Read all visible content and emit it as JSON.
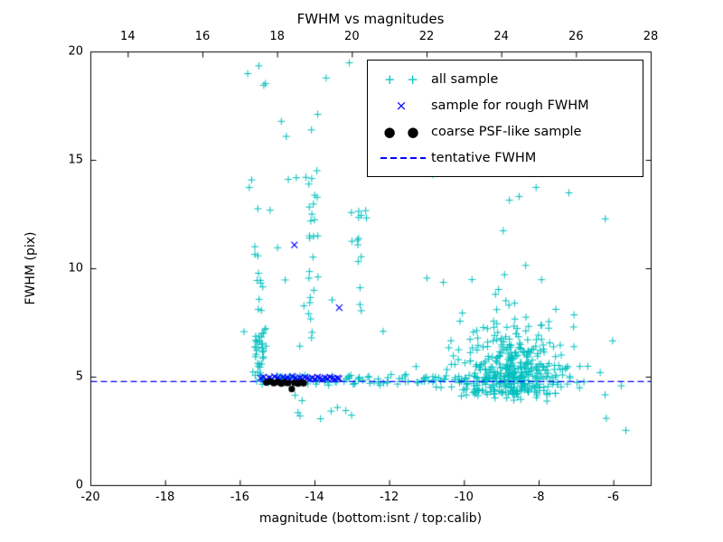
{
  "chart_data": {
    "type": "scatter",
    "title": "FWHM vs magnitudes",
    "xlabel": "magnitude (bottom:isnt / top:calib)",
    "ylabel": "FWHM (pix)",
    "xlim": [
      -20,
      -5
    ],
    "ylim": [
      0,
      20
    ],
    "top_axis_offset": 33,
    "x_ticks_bottom": [
      -20,
      -18,
      -16,
      -14,
      -12,
      -10,
      -8,
      -6
    ],
    "x_ticks_top": [
      14,
      16,
      18,
      20,
      22,
      24,
      26,
      28
    ],
    "y_ticks": [
      0,
      5,
      10,
      15,
      20
    ],
    "grid": false,
    "legend": {
      "position": "upper right",
      "entries": [
        {
          "label": "all sample",
          "type": "plus",
          "glyph": "+ +",
          "color": "#00bfbf"
        },
        {
          "label": "sample for rough FWHM",
          "type": "x",
          "glyph": "×",
          "color": "#0000ff"
        },
        {
          "label": "coarse PSF-like sample",
          "type": "dots",
          "glyph": "● ●",
          "color": "#000000"
        },
        {
          "label": "tentative FWHM",
          "type": "dash",
          "glyph": "",
          "color": "#0000ff"
        }
      ]
    },
    "lines": [
      {
        "name": "tentative FWHM",
        "y": 4.8,
        "style": "dashed",
        "color": "#0000ff"
      }
    ],
    "series": [
      {
        "name": "all sample",
        "marker": "plus",
        "color": "#00bfbf",
        "points": [
          [
            -15.8,
            19.0
          ],
          [
            -13.7,
            18.8
          ],
          [
            -14.9,
            16.8
          ],
          [
            -12.35,
            16.4
          ],
          [
            -10.6,
            15.9
          ],
          [
            -15.9,
            7.1
          ],
          [
            -15.2,
            12.7
          ],
          [
            -14.5,
            14.2
          ],
          [
            -6.2,
            3.1
          ],
          [
            -5.8,
            4.6
          ],
          [
            -13.4,
            3.6
          ],
          [
            -7.2,
            13.5
          ]
        ],
        "clusters": [
          {
            "count": 420,
            "x": {
              "dist": "normal",
              "mu": -8.65,
              "sigma": 0.75,
              "lo": -11.8,
              "hi": -5.3
            },
            "y": {
              "dist": "lognormal",
              "base": 3.6,
              "mu": 0.45,
              "sigma": 0.62,
              "lo": 2.6,
              "hi": 14.5
            }
          },
          {
            "count": 110,
            "x": {
              "dist": "uniform",
              "min": -15.55,
              "max": -9.3
            },
            "y": {
              "dist": "normal",
              "mu": 4.85,
              "sigma": 0.15,
              "lo": 4.4,
              "hi": 5.4
            }
          },
          {
            "count": 50,
            "x": {
              "dist": "normal",
              "mu": -15.5,
              "sigma": 0.09,
              "lo": -15.8,
              "hi": -15.2
            },
            "y": {
              "dist": "lognormal",
              "base": 4.3,
              "mu": 0.9,
              "sigma": 0.85,
              "lo": 4.6,
              "hi": 19.8
            }
          },
          {
            "count": 26,
            "x": {
              "dist": "normal",
              "mu": -14.1,
              "sigma": 0.1,
              "lo": -14.4,
              "hi": -13.85
            },
            "y": {
              "dist": "uniform",
              "min": 6.8,
              "max": 14.6
            }
          },
          {
            "count": 14,
            "x": {
              "dist": "normal",
              "mu": -12.85,
              "sigma": 0.12,
              "lo": -13.2,
              "hi": -12.5
            },
            "y": {
              "dist": "uniform",
              "min": 8.0,
              "max": 13.4
            }
          },
          {
            "count": 45,
            "x": {
              "dist": "uniform",
              "min": -15.9,
              "max": -5.5
            },
            "y": {
              "dist": "uniform",
              "min": 2.3,
              "max": 19.6
            }
          },
          {
            "count": 8,
            "x": {
              "dist": "uniform",
              "min": -14.9,
              "max": -12.7
            },
            "y": {
              "dist": "uniform",
              "min": 2.8,
              "max": 4.2
            }
          }
        ]
      },
      {
        "name": "sample for rough FWHM",
        "marker": "x",
        "color": "#0000ff",
        "points": [
          [
            -15.45,
            4.95
          ],
          [
            -15.38,
            5.0
          ],
          [
            -15.3,
            4.9
          ],
          [
            -15.22,
            4.97
          ],
          [
            -15.15,
            4.92
          ],
          [
            -15.08,
            5.02
          ],
          [
            -15.0,
            4.95
          ],
          [
            -14.93,
            4.9
          ],
          [
            -14.86,
            5.0
          ],
          [
            -14.8,
            4.93
          ],
          [
            -14.73,
            4.97
          ],
          [
            -14.66,
            4.9
          ],
          [
            -14.6,
            5.03
          ],
          [
            -14.53,
            4.95
          ],
          [
            -14.47,
            4.9
          ],
          [
            -14.4,
            4.98
          ],
          [
            -14.33,
            4.92
          ],
          [
            -14.27,
            5.0
          ],
          [
            -14.2,
            4.94
          ],
          [
            -14.13,
            4.9
          ],
          [
            -14.07,
            4.97
          ],
          [
            -14.0,
            4.92
          ],
          [
            -13.93,
            5.0
          ],
          [
            -13.87,
            4.95
          ],
          [
            -13.8,
            4.9
          ],
          [
            -13.73,
            4.97
          ],
          [
            -13.67,
            4.93
          ],
          [
            -13.6,
            5.0
          ],
          [
            -13.53,
            4.95
          ],
          [
            -13.47,
            4.9
          ],
          [
            -13.4,
            4.96
          ],
          [
            -13.35,
            4.93
          ],
          [
            -14.55,
            11.1
          ],
          [
            -13.35,
            8.2
          ]
        ]
      },
      {
        "name": "coarse PSF-like sample",
        "marker": "dot",
        "color": "#000000",
        "points": [
          [
            -15.3,
            4.75
          ],
          [
            -15.2,
            4.8
          ],
          [
            -15.1,
            4.72
          ],
          [
            -15.0,
            4.78
          ],
          [
            -14.9,
            4.7
          ],
          [
            -14.82,
            4.76
          ],
          [
            -14.72,
            4.73
          ],
          [
            -14.62,
            4.45
          ],
          [
            -14.55,
            4.74
          ],
          [
            -14.45,
            4.7
          ],
          [
            -14.38,
            4.76
          ],
          [
            -14.3,
            4.72
          ]
        ]
      }
    ]
  }
}
